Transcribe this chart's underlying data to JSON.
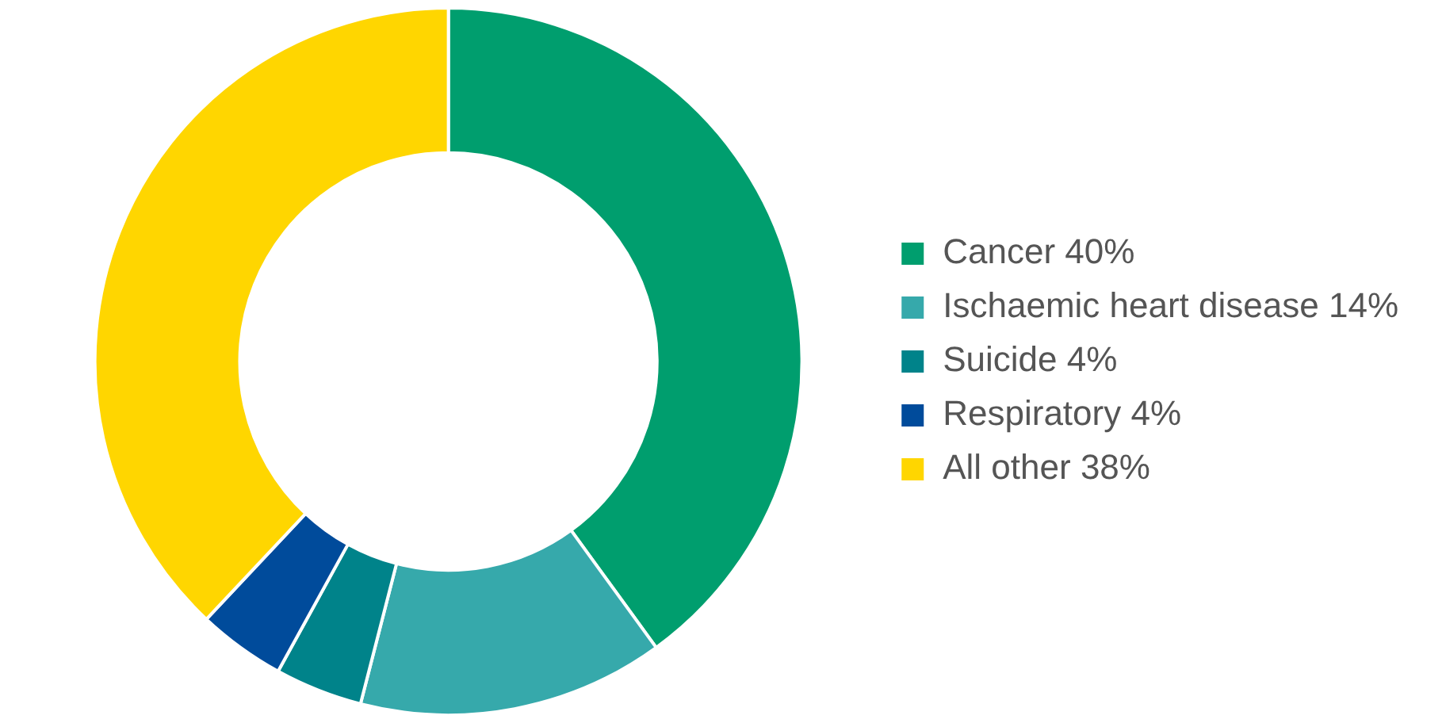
{
  "chart_data": {
    "type": "donut",
    "categories": [
      "Cancer 40%",
      "Ischaemic heart disease 14%",
      "Suicide 4%",
      "Respiratory 4%",
      "All other 38%"
    ],
    "values": [
      40,
      14,
      4,
      4,
      38
    ],
    "colors": [
      "#009e6e",
      "#36a9ab",
      "#00838a",
      "#004b9b",
      "#ffd600"
    ],
    "legend": "right"
  }
}
